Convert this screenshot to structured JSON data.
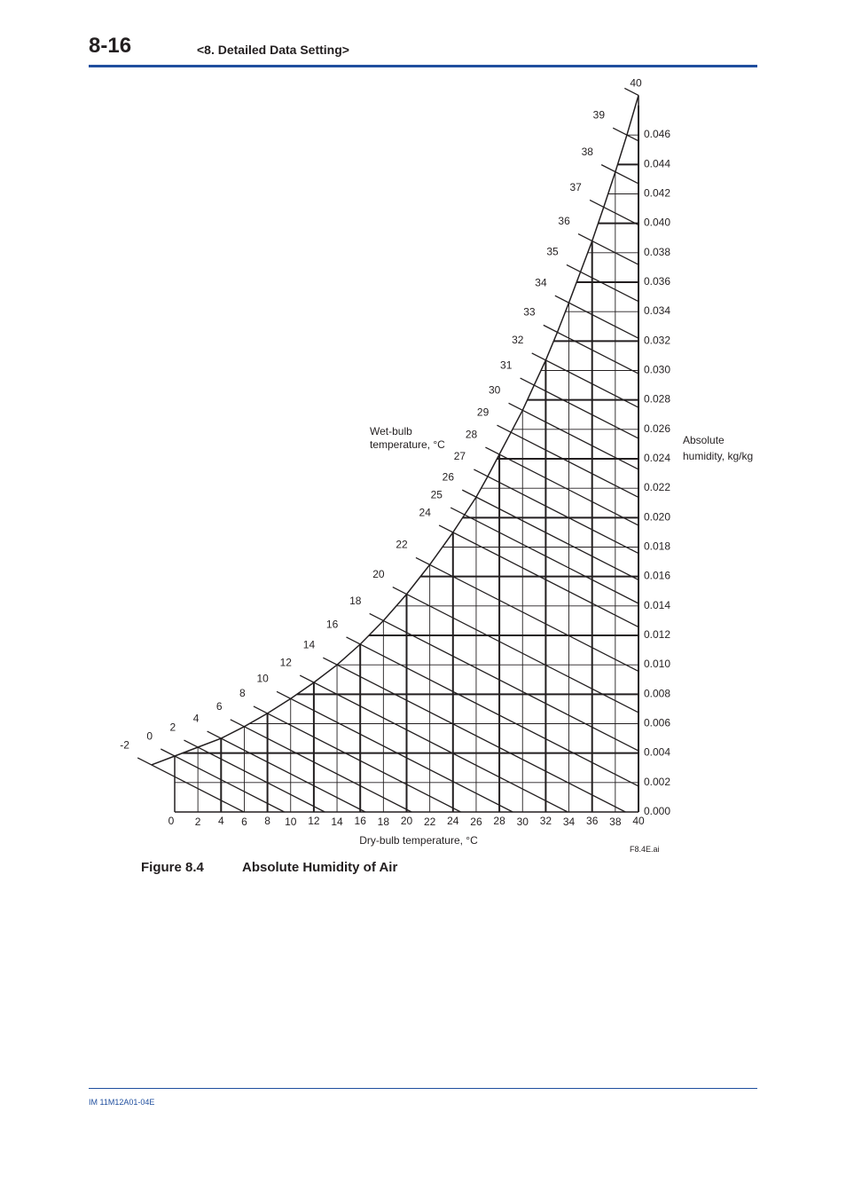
{
  "header": {
    "page_number": "8-16",
    "section_title": "<8. Detailed Data Setting>"
  },
  "figure": {
    "label": "Figure 8.4",
    "title": "Absolute Humidity of Air",
    "file_tag": "F8.4E.ai"
  },
  "footer": {
    "doc_id": "IM 11M12A01-04E"
  },
  "chart_data": {
    "type": "line",
    "title": "",
    "xlabel": "Dry-bulb temperature, °C",
    "ylabel": "Absolute humidity, kg/kg",
    "curve_label": "Wet-bulb temperature, °C",
    "xlim": [
      0,
      40
    ],
    "ylim": [
      0,
      0.048
    ],
    "x_ticks": [
      "0",
      "2",
      "4",
      "6",
      "8",
      "10",
      "12",
      "14",
      "16",
      "18",
      "20",
      "22",
      "24",
      "26",
      "28",
      "30",
      "32",
      "34",
      "36",
      "38",
      "40"
    ],
    "y_ticks": [
      "0.000",
      "0.002",
      "0.004",
      "0.006",
      "0.008",
      "0.010",
      "0.012",
      "0.014",
      "0.016",
      "0.018",
      "0.020",
      "0.022",
      "0.024",
      "0.026",
      "0.028",
      "0.030",
      "0.032",
      "0.034",
      "0.036",
      "0.038",
      "0.040",
      "0.042",
      "0.044",
      "0.046"
    ],
    "saturation_curve": {
      "x": [
        -2,
        0,
        2,
        4,
        6,
        8,
        10,
        12,
        14,
        16,
        18,
        20,
        22,
        24,
        25,
        26,
        27,
        28,
        29,
        30,
        31,
        32,
        33,
        34,
        35,
        36,
        37,
        38,
        39,
        40
      ],
      "y": [
        0.0032,
        0.0038,
        0.0044,
        0.005,
        0.0058,
        0.0067,
        0.0077,
        0.0088,
        0.01,
        0.0114,
        0.013,
        0.0148,
        0.0168,
        0.019,
        0.0202,
        0.0214,
        0.0228,
        0.0243,
        0.0258,
        0.0273,
        0.029,
        0.0307,
        0.0326,
        0.0346,
        0.0367,
        0.0388,
        0.0411,
        0.0435,
        0.046,
        0.0487
      ]
    },
    "wet_bulb_lines": [
      "-2",
      "0",
      "2",
      "4",
      "6",
      "8",
      "10",
      "12",
      "14",
      "16",
      "18",
      "20",
      "22",
      "24",
      "25",
      "26",
      "27",
      "28",
      "29",
      "30",
      "31",
      "32",
      "33",
      "34",
      "35",
      "36",
      "37",
      "38",
      "39",
      "40"
    ]
  }
}
